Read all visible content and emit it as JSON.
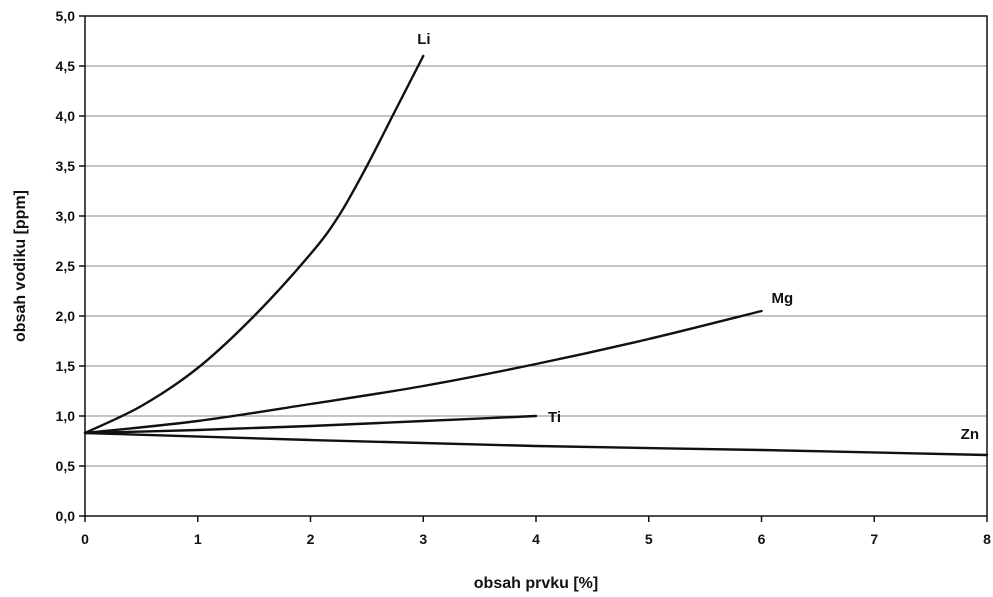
{
  "chart_data": {
    "type": "line",
    "title": "",
    "xlabel": "obsah prvku [%]",
    "ylabel": "obsah vodiku [ppm]",
    "xlim": [
      0,
      8
    ],
    "ylim": [
      0,
      5
    ],
    "x_ticks": [
      "0",
      "1",
      "2",
      "3",
      "4",
      "5",
      "6",
      "7",
      "8"
    ],
    "y_ticks": [
      "0,0",
      "0,5",
      "1,0",
      "1,5",
      "2,0",
      "2,5",
      "3,0",
      "3,5",
      "4,0",
      "4,5",
      "5,0"
    ],
    "grid": true,
    "legend": "none",
    "series": [
      {
        "name": "Li",
        "x": [
          0,
          0.5,
          1,
          1.5,
          2,
          2.25,
          2.5,
          2.75,
          3
        ],
        "y": [
          0.83,
          1.1,
          1.48,
          2.0,
          2.62,
          3.0,
          3.5,
          4.05,
          4.6
        ]
      },
      {
        "name": "Mg",
        "x": [
          0,
          1,
          2,
          3,
          4,
          5,
          6
        ],
        "y": [
          0.83,
          0.95,
          1.12,
          1.3,
          1.52,
          1.77,
          2.05
        ]
      },
      {
        "name": "Ti",
        "x": [
          0,
          1,
          2,
          3,
          4
        ],
        "y": [
          0.83,
          0.86,
          0.9,
          0.95,
          1.0
        ]
      },
      {
        "name": "Zn",
        "x": [
          0,
          2,
          4,
          6,
          8
        ],
        "y": [
          0.83,
          0.76,
          0.7,
          0.66,
          0.61
        ]
      }
    ]
  }
}
